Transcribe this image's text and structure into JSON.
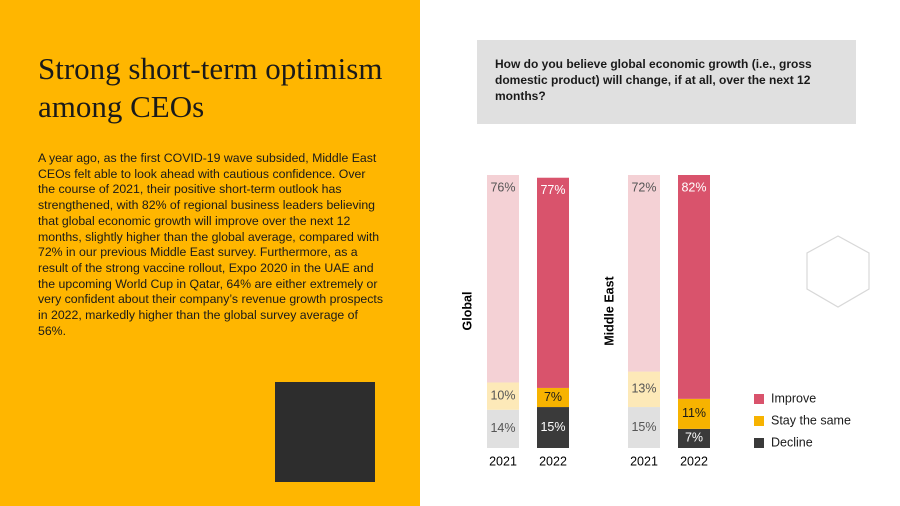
{
  "slide": {
    "title": "Strong short-term optimism among CEOs",
    "body": "A year ago, as the first COVID-19 wave subsided, Middle East CEOs felt able to look ahead with cautious confidence. Over the course of 2021, their positive short-term outlook has strengthened, with 82% of regional business leaders believing that global economic growth will improve over the next 12 months, slightly higher than the global average, compared with 72% in our previous Middle East survey. Furthermore, as a result of the strong vaccine rollout, Expo 2020 in the UAE and the upcoming World Cup in Qatar, 64% are either extremely or very confident about their company’s revenue growth prospects in 2022, markedly higher than the global survey average of 56%."
  },
  "chart_data": {
    "type": "stacked-bar",
    "title": "How do you believe global economic growth (i.e., gross domestic product) will change, if at all, over the next 12 months?",
    "ylim": [
      0,
      100
    ],
    "series": [
      {
        "name": "Improve",
        "color": "#d9536c",
        "colors": [
          "#f4d1d5",
          "#d9536c"
        ]
      },
      {
        "name": "Stay the same",
        "color": "#f7b300",
        "colors": [
          "#fde9b8",
          "#f7b300"
        ]
      },
      {
        "name": "Decline",
        "color": "#3a3a3a",
        "colors": [
          "#e0e0e0",
          "#3a3a3a"
        ]
      }
    ],
    "panels": [
      {
        "name": "Global",
        "categories": [
          "2021",
          "2022"
        ],
        "values": [
          [
            76,
            77
          ],
          [
            10,
            7
          ],
          [
            14,
            15
          ]
        ],
        "value_labels": [
          [
            "76%",
            "77%"
          ],
          [
            "10%",
            "7%"
          ],
          [
            "14%",
            "15%"
          ]
        ]
      },
      {
        "name": "Middle East",
        "categories": [
          "2021",
          "2022"
        ],
        "values": [
          [
            72,
            82
          ],
          [
            13,
            11
          ],
          [
            15,
            7
          ]
        ],
        "value_labels": [
          [
            "72%",
            "82%"
          ],
          [
            "13%",
            "11%"
          ],
          [
            "15%",
            "7%"
          ]
        ]
      }
    ]
  }
}
